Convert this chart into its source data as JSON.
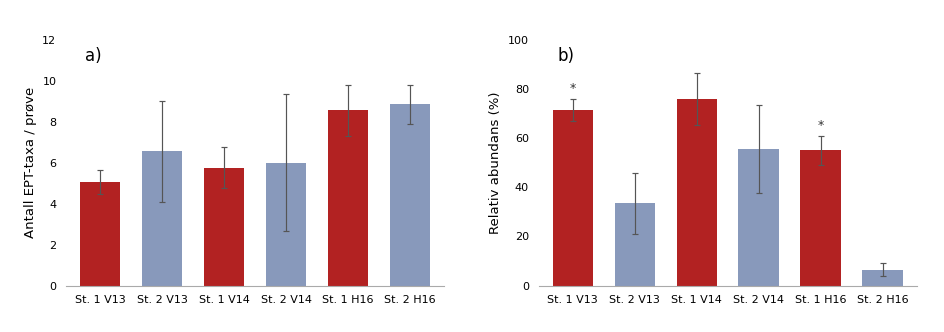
{
  "categories": [
    "St. 1 V13",
    "St. 2 V13",
    "St. 1 V14",
    "St. 2 V14",
    "St. 1 H16",
    "St. 2 H16"
  ],
  "colors": [
    "#b22222",
    "#8899bb",
    "#b22222",
    "#8899bb",
    "#b22222",
    "#8899bb"
  ],
  "panel_a": {
    "values": [
      5.05,
      6.55,
      5.75,
      6.0,
      8.55,
      8.85
    ],
    "errors": [
      0.6,
      2.45,
      1.0,
      3.35,
      1.25,
      0.95
    ],
    "ylabel": "Antall EPT-taxa / prøve",
    "ylim": [
      0,
      12
    ],
    "yticks": [
      0,
      2,
      4,
      6,
      8,
      10,
      12
    ],
    "label": "a)"
  },
  "panel_b": {
    "values": [
      71.5,
      33.5,
      76.0,
      55.5,
      55.0,
      6.5
    ],
    "errors": [
      4.5,
      12.5,
      10.5,
      18.0,
      6.0,
      2.5
    ],
    "ylabel": "Relativ abundans (%)",
    "ylim": [
      0,
      100
    ],
    "yticks": [
      0,
      20,
      40,
      60,
      80,
      100
    ],
    "label": "b)",
    "asterisks": [
      true,
      false,
      false,
      false,
      true,
      false
    ]
  },
  "background_color": "#ffffff",
  "bar_width": 0.65,
  "tick_fontsize": 8,
  "label_fontsize": 9.5,
  "panel_label_fontsize": 12
}
